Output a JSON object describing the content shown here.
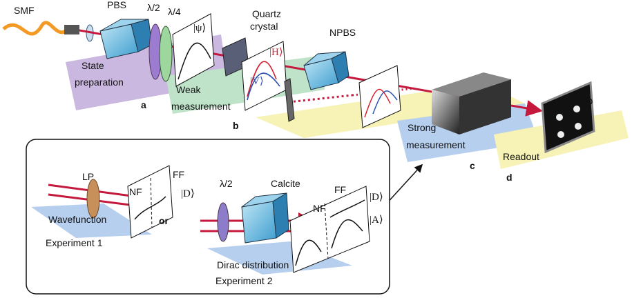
{
  "setup": {
    "fiber": "SMF",
    "pbs": "PBS",
    "half_wave": "λ/2",
    "quarter_wave": "λ/4",
    "psi": "|ψ⟩",
    "crystal": [
      "Quartz",
      "crystal"
    ],
    "h_state": "|H⟩",
    "v_state": "|V⟩",
    "npbs": "NPBS",
    "ccd": "CCD"
  },
  "stages": [
    {
      "label": [
        "State",
        "preparation"
      ],
      "letter": "a"
    },
    {
      "label": [
        "Weak",
        "measurement"
      ],
      "letter": "b"
    },
    {
      "label": [
        "Strong",
        "measurement"
      ],
      "letter": "c"
    },
    {
      "label": [
        "Readout"
      ],
      "letter": "d"
    }
  ],
  "inset": {
    "experiment1": {
      "lp": "LP",
      "nf": "NF",
      "ff": "FF",
      "state": "|D⟩",
      "plane": "Wavefunction",
      "name": "Experiment 1"
    },
    "or": "or",
    "experiment2": {
      "half_wave": "λ/2",
      "calcite": "Calcite",
      "nf": "NF",
      "ff": "FF",
      "state_d": "|D⟩",
      "state_a": "|A⟩",
      "plane": "Dirac distribution",
      "name": "Experiment 2"
    }
  }
}
